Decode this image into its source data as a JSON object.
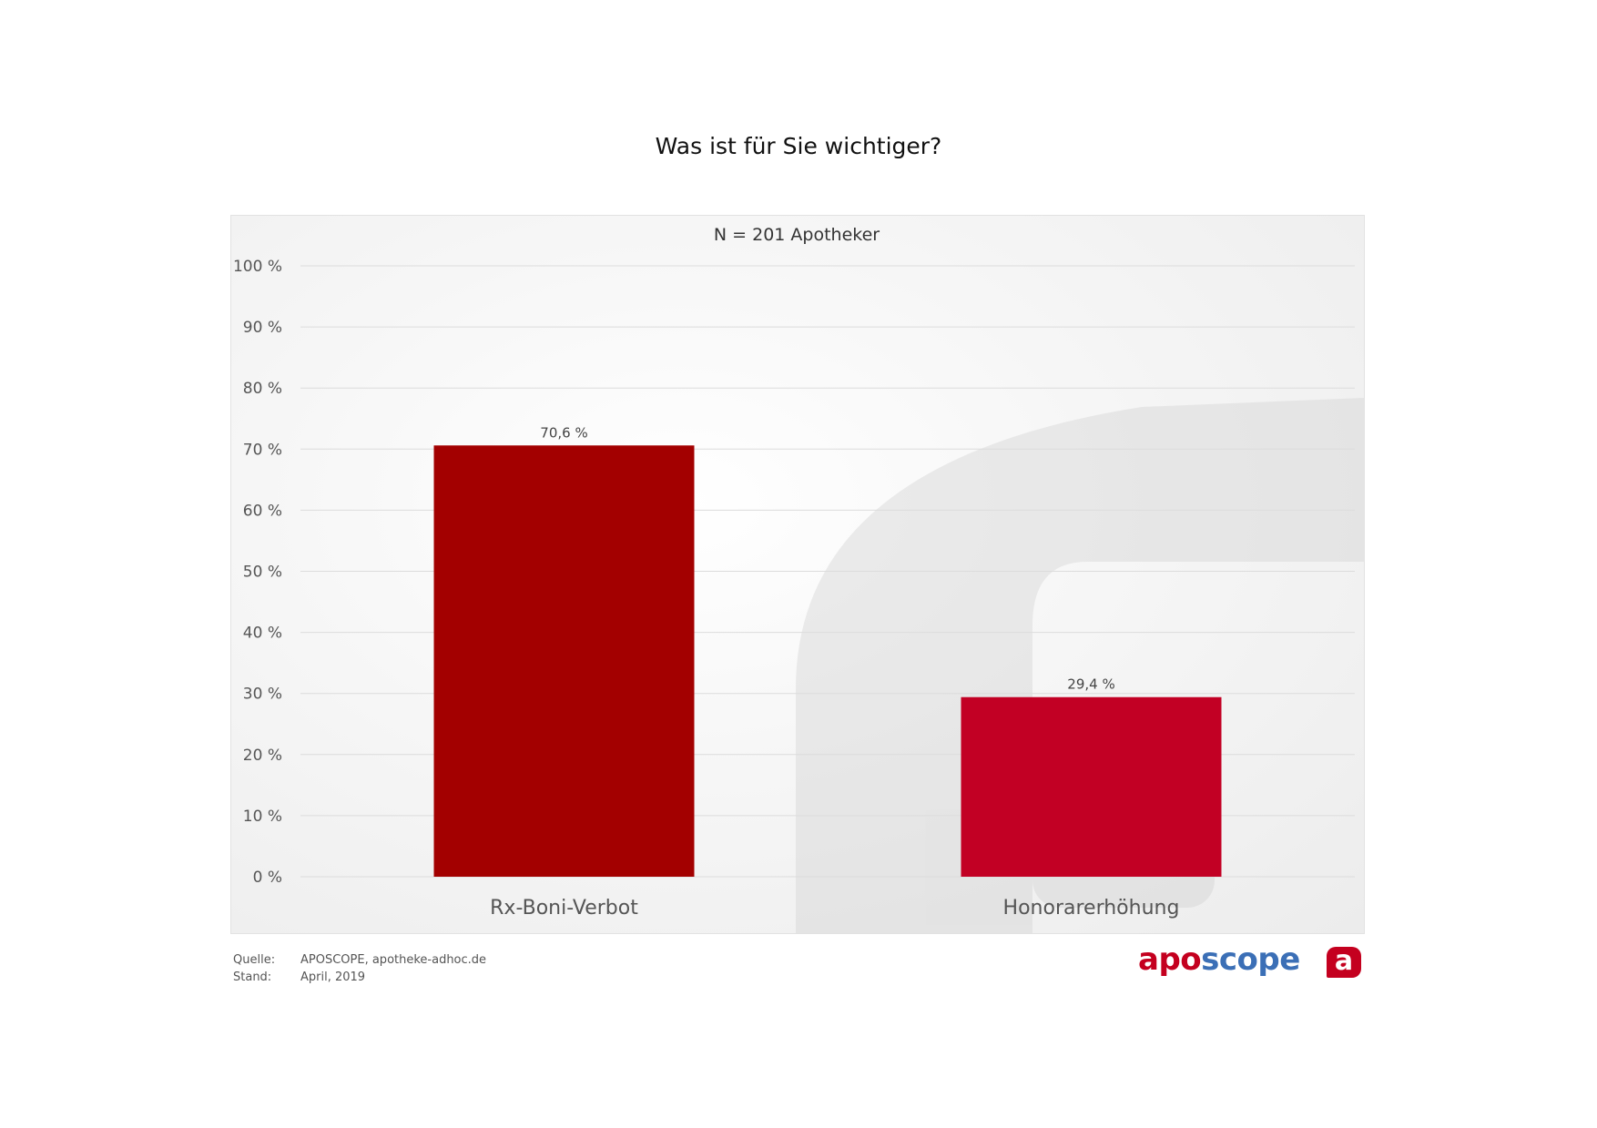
{
  "header": {
    "title": "Was ist für Sie wichtiger?"
  },
  "chart_data": {
    "type": "bar",
    "title": "Was ist für Sie wichtiger?",
    "subtitle": "N = 201 Apotheker",
    "categories": [
      "Rx-Boni-Verbot",
      "Honorarerhöhung"
    ],
    "values": [
      70.6,
      29.4
    ],
    "value_labels": [
      "70,6 %",
      "29,4 %"
    ],
    "bar_colors": [
      "#a30000",
      "#c20024"
    ],
    "ylim": [
      0,
      100
    ],
    "yticks": [
      0,
      10,
      20,
      30,
      40,
      50,
      60,
      70,
      80,
      90,
      100
    ],
    "ytick_labels": [
      "0 %",
      "10 %",
      "20 %",
      "30 %",
      "40 %",
      "50 %",
      "60 %",
      "70 %",
      "80 %",
      "90 %",
      "100 %"
    ],
    "grid": true,
    "xlabel": "",
    "ylabel": ""
  },
  "footer": {
    "source_label": "Quelle:",
    "source_value": "APOSCOPE, apotheke-adhoc.de",
    "date_label": "Stand:",
    "date_value": "April, 2019"
  },
  "brand": {
    "part1": "apo",
    "part2": "scope",
    "badge": "a",
    "colors": {
      "red": "#c4001f",
      "blue": "#3b6fb6"
    }
  }
}
